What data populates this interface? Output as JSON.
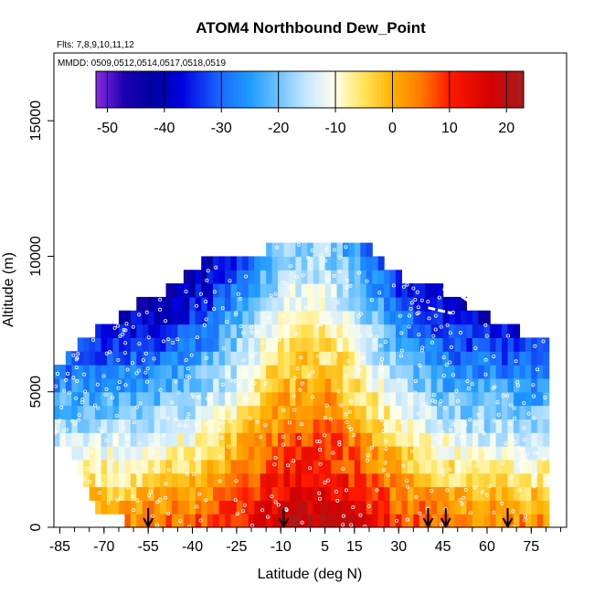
{
  "chart_data": {
    "type": "heatmap",
    "title": "ATOM4 Northbound Dew_Point",
    "flights_label": "Flts: 7,8,9,10,11,12",
    "dates_label": "MMDD: 0509,0512,0514,0517,0518,0519",
    "xlabel": "Latitude (deg N)",
    "ylabel": "Altitude (m)",
    "xlim": [
      -87,
      87
    ],
    "ylim": [
      0,
      17500
    ],
    "x_ticks": [
      -85,
      -70,
      -55,
      -40,
      -25,
      -10,
      5,
      15,
      30,
      45,
      60,
      75
    ],
    "x_tick_labels": [
      "-85",
      "-70",
      "-55",
      "-40",
      "-25",
      "-10",
      "5",
      "15",
      "30",
      "45",
      "60",
      "75"
    ],
    "y_ticks": [
      0,
      5000,
      10000,
      15000
    ],
    "y_tick_labels": [
      "0",
      "5000",
      "10000",
      "15000"
    ],
    "colorbar": {
      "min": -52,
      "max": 23,
      "ticks": [
        -50,
        -40,
        -30,
        -20,
        -10,
        0,
        10,
        20
      ],
      "tick_labels": [
        "-50",
        "-40",
        "-30",
        "-20",
        "-10",
        "0",
        "10",
        "20"
      ],
      "colors": [
        {
          "v": -52,
          "c": "#8a2be2"
        },
        {
          "v": -47,
          "c": "#1a00b0"
        },
        {
          "v": -42,
          "c": "#0000a0"
        },
        {
          "v": -37,
          "c": "#0000e0"
        },
        {
          "v": -30,
          "c": "#1a6bff"
        },
        {
          "v": -25,
          "c": "#1e9bff"
        },
        {
          "v": -20,
          "c": "#6ec3ff"
        },
        {
          "v": -15,
          "c": "#c8e8ff"
        },
        {
          "v": -10,
          "c": "#ffffe8"
        },
        {
          "v": -5,
          "c": "#ffe45a"
        },
        {
          "v": 0,
          "c": "#ffb000"
        },
        {
          "v": 5,
          "c": "#ff7a00"
        },
        {
          "v": 10,
          "c": "#ff1a00"
        },
        {
          "v": 17,
          "c": "#d40000"
        },
        {
          "v": 23,
          "c": "#a81c1c"
        }
      ]
    },
    "envelope": [
      {
        "lat": -87,
        "top": 6000
      },
      {
        "lat": -83,
        "top": 6000
      },
      {
        "lat": -80,
        "top": 6500
      },
      {
        "lat": -73,
        "top": 7000
      },
      {
        "lat": -65,
        "top": 7500
      },
      {
        "lat": -59,
        "top": 8000
      },
      {
        "lat": -50,
        "top": 8500
      },
      {
        "lat": -43,
        "top": 9000
      },
      {
        "lat": -38,
        "top": 9500
      },
      {
        "lat": -33,
        "top": 10000
      },
      {
        "lat": -15,
        "top": 10000
      },
      {
        "lat": -13,
        "top": 10500
      },
      {
        "lat": 19,
        "top": 10500
      },
      {
        "lat": 21,
        "top": 10000
      },
      {
        "lat": 25,
        "top": 9500
      },
      {
        "lat": 32,
        "top": 9000
      },
      {
        "lat": 45,
        "top": 8500
      },
      {
        "lat": 53,
        "top": 8000
      },
      {
        "lat": 61,
        "top": 7500
      },
      {
        "lat": 71,
        "top": 7000
      },
      {
        "lat": 80,
        "top": 7000
      }
    ],
    "envelope_bottom": [
      {
        "lat": -87,
        "bottom": 3500
      },
      {
        "lat": -82,
        "bottom": 3000
      },
      {
        "lat": -80,
        "bottom": 2500
      },
      {
        "lat": -78,
        "bottom": 2000
      },
      {
        "lat": -76,
        "bottom": 1500
      },
      {
        "lat": -74,
        "bottom": 1000
      },
      {
        "lat": -68,
        "bottom": 800
      },
      {
        "lat": -60,
        "bottom": 300
      },
      {
        "lat": -54,
        "bottom": 0
      },
      {
        "lat": 73,
        "bottom": 0
      },
      {
        "lat": 80,
        "bottom": 0
      }
    ],
    "profile_latitudes": [
      -55,
      -9,
      40,
      46,
      67
    ]
  }
}
